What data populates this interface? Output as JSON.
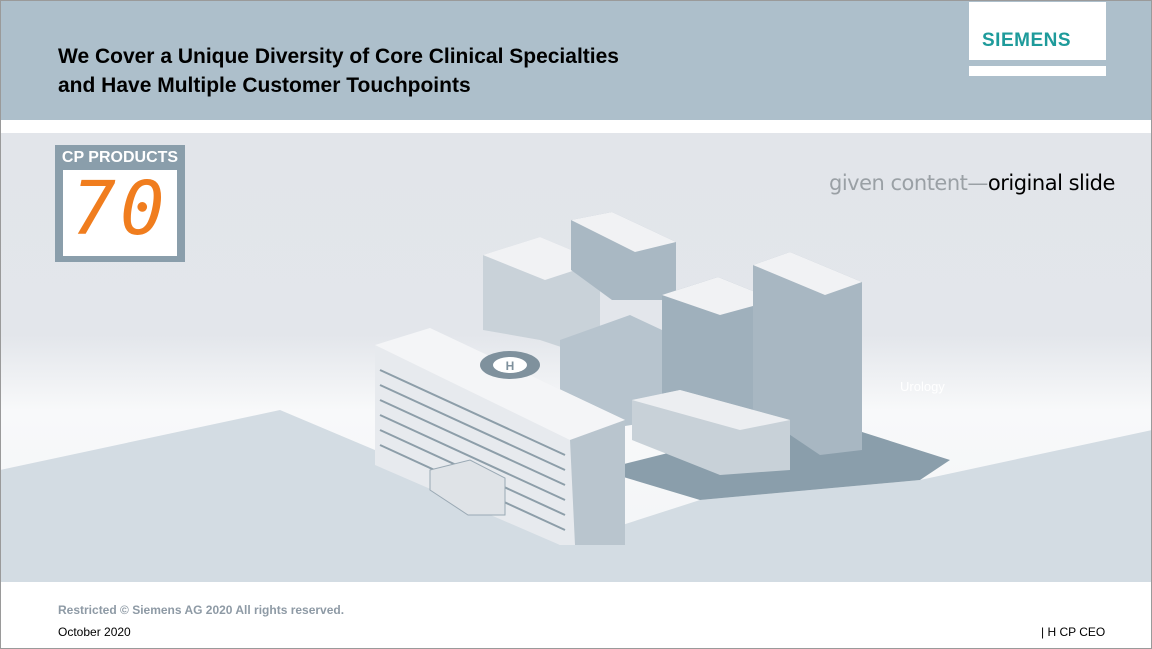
{
  "header": {
    "title_line1": "We Cover a Unique Diversity of Core Clinical Specialties",
    "title_line2": "and Have Multiple Customer Touchpoints",
    "logo": "SIEMENS"
  },
  "hero": {
    "badge_label": "CP PRODUCTS",
    "badge_number": "70",
    "caption_gray": "given content—",
    "caption_black": "original slide",
    "faint_label": "Urology"
  },
  "footer": {
    "copyright": "Restricted © Siemens AG 2020 All rights reserved.",
    "date": "October 2020",
    "department": "| H CP CEO"
  },
  "colors": {
    "header_bg": "#adbfcb",
    "brand": "#1e9b9b",
    "badge_orange": "#f07d1e"
  }
}
